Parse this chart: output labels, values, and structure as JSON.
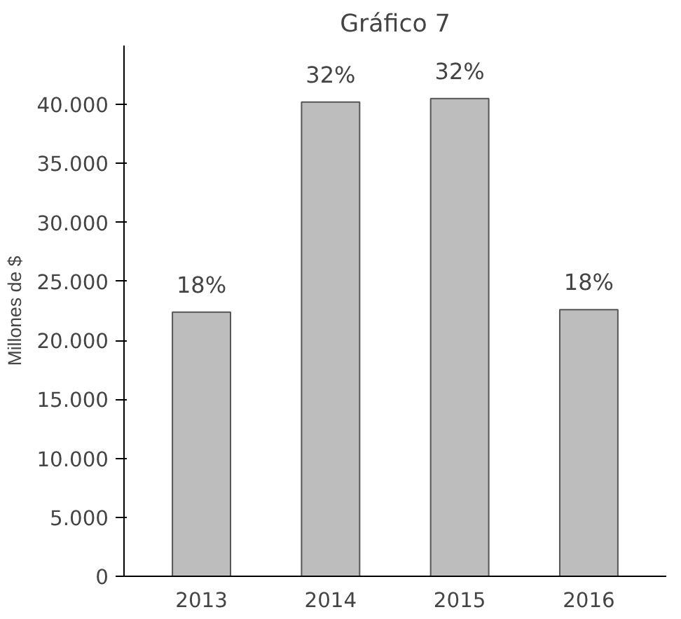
{
  "chart_data": {
    "type": "bar",
    "title": "Gráfico 7",
    "ylabel": "Millones de $",
    "categories": [
      "2013",
      "2014",
      "2015",
      "2016"
    ],
    "values": [
      22400,
      40200,
      40500,
      22600
    ],
    "color": "#bdbdbd",
    "annotations": [
      {
        "text": "18%",
        "x": "2013",
        "y": 22400
      },
      {
        "text": "32%",
        "x": "2014",
        "y": 40200
      },
      {
        "text": "32%",
        "x": "2015",
        "y": 40500
      },
      {
        "text": "18%",
        "x": "2016",
        "y": 22600
      }
    ],
    "ylim": [
      0,
      45000
    ],
    "yticks": [
      {
        "value": 0,
        "label": "0"
      },
      {
        "value": 5000,
        "label": "5.000"
      },
      {
        "value": 10000,
        "label": "10.000"
      },
      {
        "value": 15000,
        "label": "15.000"
      },
      {
        "value": 20000,
        "label": "20.000"
      },
      {
        "value": 25000,
        "label": "25.000"
      },
      {
        "value": 30000,
        "label": "30.000"
      },
      {
        "value": 35000,
        "label": "35.000"
      },
      {
        "value": 40000,
        "label": "40.000"
      }
    ],
    "grid": false
  }
}
